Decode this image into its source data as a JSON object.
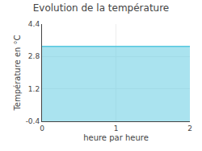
{
  "chart_data": {
    "type": "area",
    "title": "Evolution de la température",
    "xlabel": "heure par heure",
    "ylabel": "Température en °C",
    "x": [
      0,
      2
    ],
    "values": [
      3.3,
      3.3
    ],
    "color": "#55c8e0",
    "xlim": [
      0,
      2
    ],
    "ylim": [
      -0.4,
      4.4
    ],
    "xticks": [
      0,
      1,
      2
    ],
    "yticks": [
      -0.4,
      1.2,
      2.8,
      4.4
    ],
    "grid": true
  }
}
